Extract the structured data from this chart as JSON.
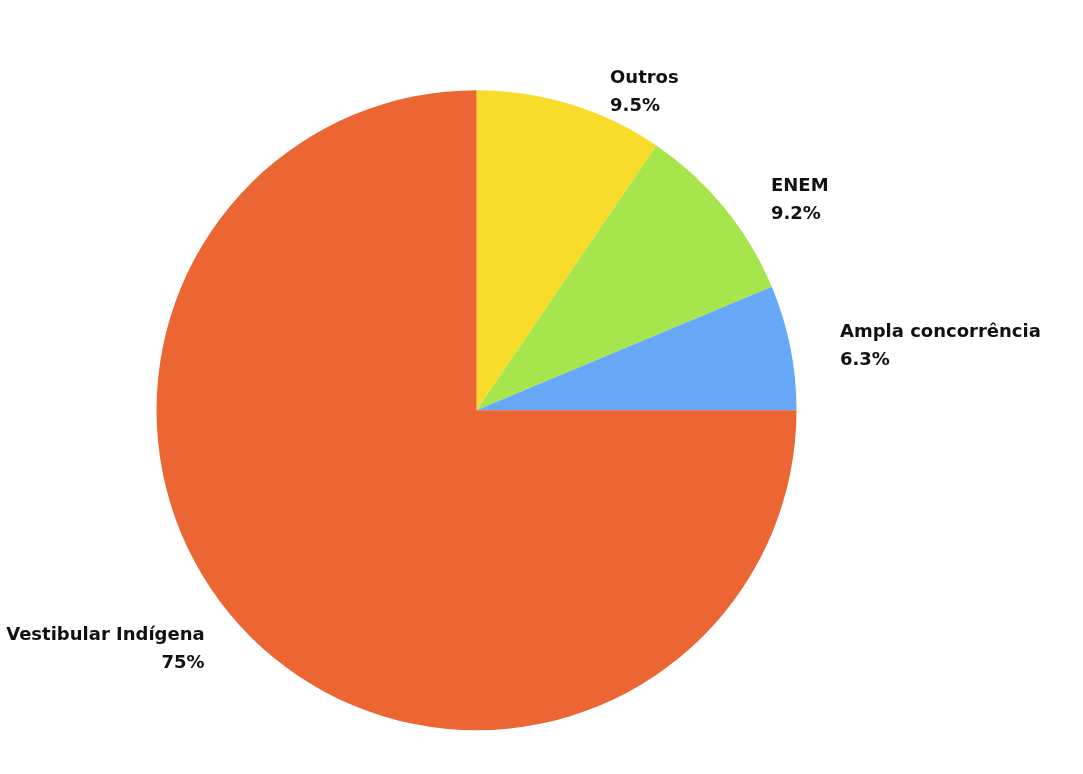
{
  "chart_data": {
    "type": "pie",
    "categories": [
      "Outros",
      "ENEM",
      "Ampla concorrência",
      "Vestibular Indígena"
    ],
    "values": [
      9.5,
      9.2,
      6.3,
      75
    ],
    "colors": [
      "#f9dc2a",
      "#a6e64c",
      "#68a8f8",
      "#eb6632"
    ],
    "value_labels": [
      "9.5%",
      "9.2%",
      "6.3%",
      "75%"
    ],
    "legend": false
  }
}
